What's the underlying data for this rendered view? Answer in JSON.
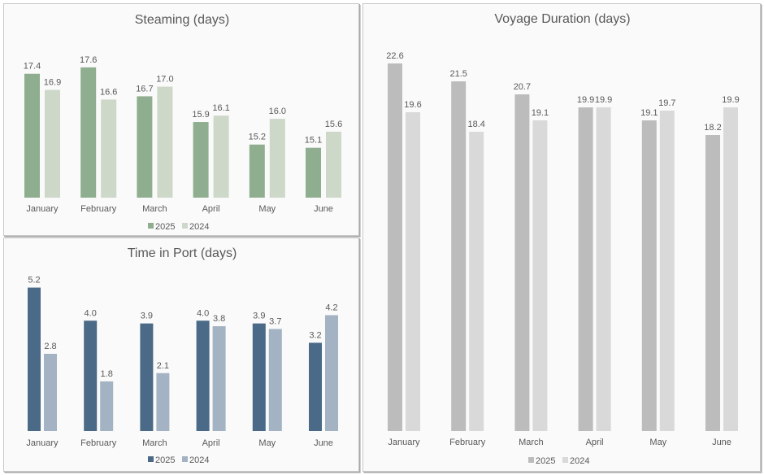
{
  "chart_data": [
    {
      "id": "steam",
      "type": "bar",
      "title": "Steaming (days)",
      "categories": [
        "January",
        "February",
        "March",
        "April",
        "May",
        "June"
      ],
      "series": [
        {
          "name": "2025",
          "color": "#8fad8f",
          "values": [
            17.4,
            17.6,
            16.7,
            15.9,
            15.2,
            15.1
          ],
          "labels": [
            "17.4",
            "17.6",
            "16.7",
            "15.9",
            "15.2",
            "15.1"
          ]
        },
        {
          "name": "2024",
          "color": "#cdd8c9",
          "values": [
            16.9,
            16.6,
            17.0,
            16.1,
            16.0,
            15.6
          ],
          "labels": [
            "16.9",
            "16.6",
            "17.0",
            "16.1",
            "16.0",
            "15.6"
          ]
        }
      ],
      "ylim": [
        13.55,
        18.0
      ],
      "legend": "bottom"
    },
    {
      "id": "port",
      "type": "bar",
      "title": "Time in Port (days)",
      "categories": [
        "January",
        "February",
        "March",
        "April",
        "May",
        "June"
      ],
      "series": [
        {
          "name": "2025",
          "color": "#4a6a87",
          "values": [
            5.2,
            4.0,
            3.9,
            4.0,
            3.9,
            3.2
          ],
          "labels": [
            "5.2",
            "4.0",
            "3.9",
            "4.0",
            "3.9",
            "3.2"
          ]
        },
        {
          "name": "2024",
          "color": "#a3b3c3",
          "values": [
            2.8,
            1.8,
            2.1,
            3.8,
            3.7,
            4.2
          ],
          "labels": [
            "2.8",
            "1.8",
            "2.1",
            "3.8",
            "3.7",
            "4.2"
          ]
        }
      ],
      "ylim": [
        0,
        5.6
      ],
      "legend": "bottom"
    },
    {
      "id": "voy",
      "type": "bar",
      "title": "Voyage Duration (days)",
      "categories": [
        "January",
        "February",
        "March",
        "April",
        "May",
        "June"
      ],
      "series": [
        {
          "name": "2025",
          "color": "#bcbcbc",
          "values": [
            22.6,
            21.5,
            20.7,
            19.9,
            19.1,
            18.2
          ],
          "labels": [
            "22.6",
            "21.5",
            "20.7",
            "19.9",
            "19.1",
            "18.2"
          ]
        },
        {
          "name": "2024",
          "color": "#d9d9d9",
          "values": [
            19.6,
            18.4,
            19.1,
            19.9,
            19.7,
            19.9
          ],
          "labels": [
            "19.6",
            "18.4",
            "19.1",
            "19.9",
            "19.7",
            "19.9"
          ]
        }
      ],
      "ylim": [
        0,
        24
      ],
      "legend": "bottom"
    }
  ]
}
